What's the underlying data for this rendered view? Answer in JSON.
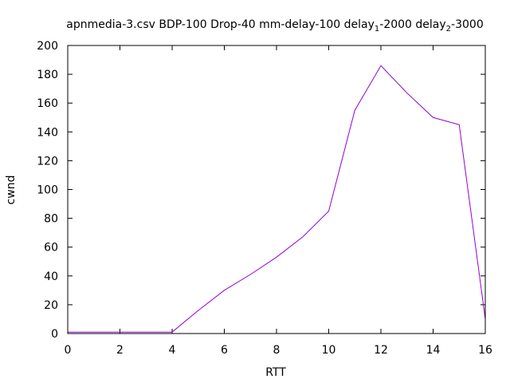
{
  "chart_data": {
    "type": "line",
    "title": {
      "prefix": "apnmedia-3.csv BDP-100 Drop-40 mm-delay-100 delay",
      "sub1": "1",
      "mid": "-2000 delay",
      "sub2": "2",
      "suffix": "-3000"
    },
    "xlabel": "RTT",
    "ylabel": "cwnd",
    "xlim": [
      0,
      16
    ],
    "ylim": [
      0,
      200
    ],
    "xticks": [
      0,
      2,
      4,
      6,
      8,
      10,
      12,
      14,
      16
    ],
    "yticks": [
      0,
      20,
      40,
      60,
      80,
      100,
      120,
      140,
      160,
      180,
      200
    ],
    "grid": false,
    "series": [
      {
        "color": "#9400d3",
        "x": [
          0,
          1,
          2,
          3,
          4,
          5,
          6,
          7,
          8,
          9,
          10,
          11,
          12,
          13,
          14,
          15,
          16
        ],
        "y": [
          1,
          1,
          1,
          1,
          1,
          16,
          30,
          41,
          53,
          67,
          85,
          155,
          186,
          167,
          150,
          145,
          10
        ]
      }
    ]
  }
}
